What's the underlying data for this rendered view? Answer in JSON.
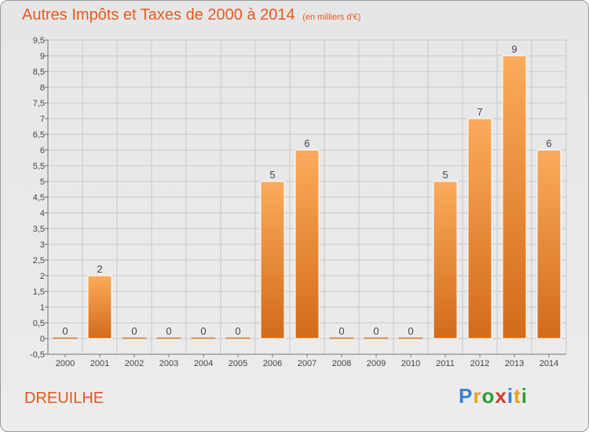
{
  "title": "Autres Impôts et Taxes de 2000 à 2014",
  "subtitle": "(en milliers d'€)",
  "town": "DREUILHE",
  "logo": {
    "text": "Proxiti"
  },
  "colors": {
    "title": "#ea5a1c",
    "bar_top": "#fbab5c",
    "bar_bottom": "#d26b1a",
    "grid": "#c8c8c8"
  },
  "chart_data": {
    "type": "bar",
    "title": "Autres Impôts et Taxes de 2000 à 2014",
    "subtitle": "(en milliers d'€)",
    "categories": [
      "2000",
      "2001",
      "2002",
      "2003",
      "2004",
      "2005",
      "2006",
      "2007",
      "2008",
      "2009",
      "2010",
      "2011",
      "2012",
      "2013",
      "2014"
    ],
    "values": [
      0,
      2,
      0,
      0,
      0,
      0,
      5,
      6,
      0,
      0,
      0,
      5,
      7,
      9,
      6
    ],
    "value_labels": [
      "0",
      "2",
      "0",
      "0",
      "0",
      "0",
      "5",
      "6",
      "0",
      "0",
      "0",
      "5",
      "7",
      "9",
      "6"
    ],
    "ylim": [
      -0.5,
      9.5
    ],
    "yticks": [
      -0.5,
      0,
      0.5,
      1,
      1.5,
      2,
      2.5,
      3,
      3.5,
      4,
      4.5,
      5,
      5.5,
      6,
      6.5,
      7,
      7.5,
      8,
      8.5,
      9,
      9.5
    ],
    "ytick_labels": [
      "-0,5",
      "0",
      "0,5",
      "1",
      "1,5",
      "2",
      "2,5",
      "3",
      "3,5",
      "4",
      "4,5",
      "5",
      "5,5",
      "6",
      "6,5",
      "7",
      "7,5",
      "8",
      "8,5",
      "9",
      "9,5"
    ],
    "grid": true,
    "legend": "none"
  }
}
